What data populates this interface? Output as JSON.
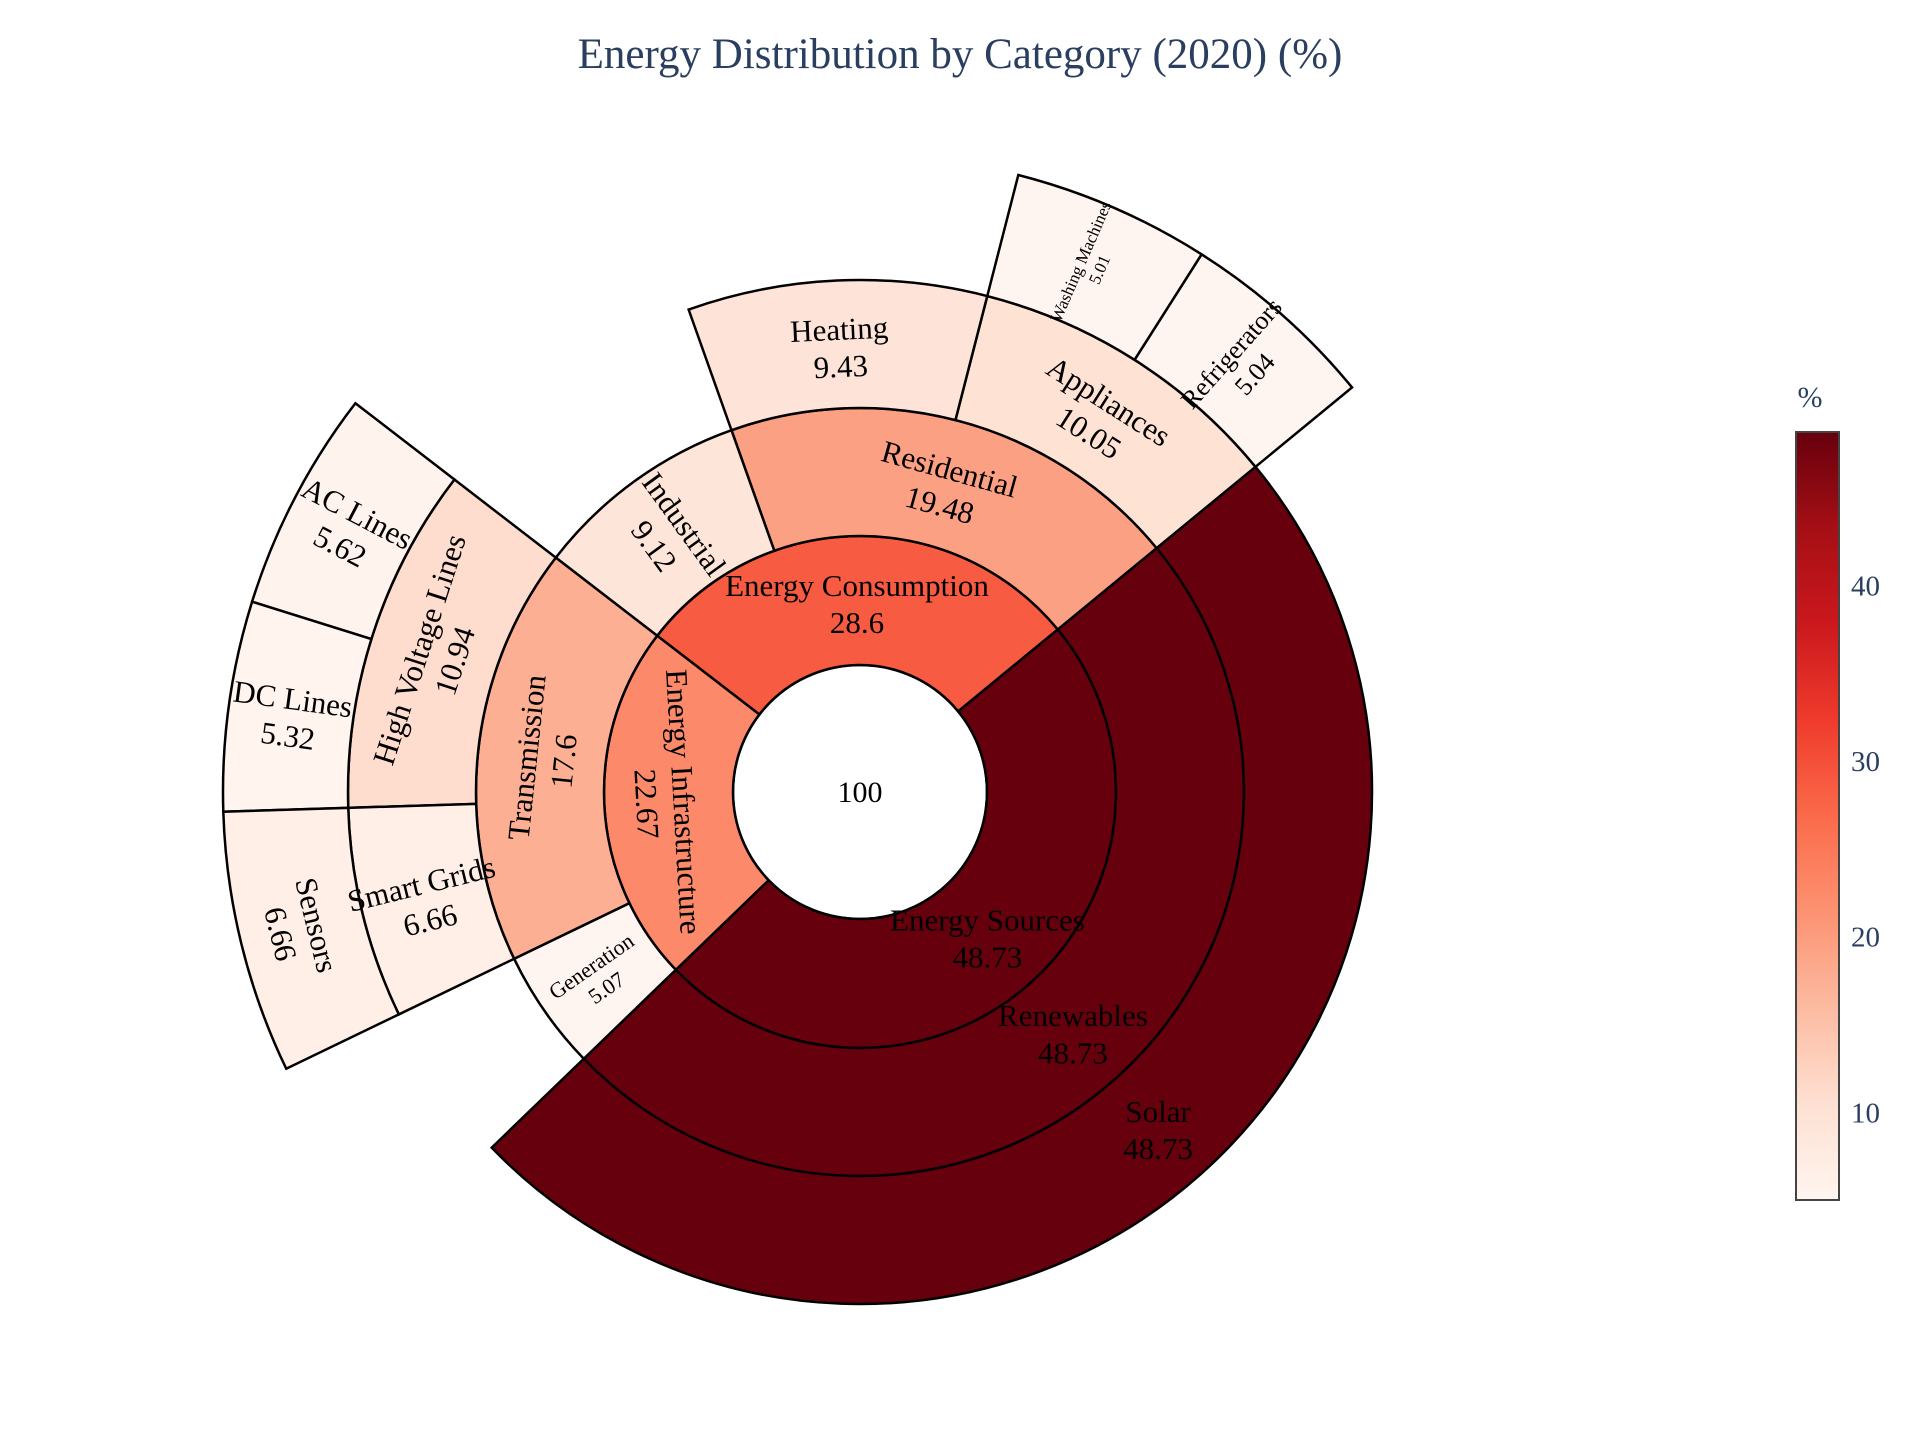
{
  "chart_data": {
    "type": "sunburst",
    "title": "Energy Distribution by Category (2020) (%)",
    "root": {
      "label": "",
      "value": 100,
      "value_text": "100"
    },
    "nodes": [
      {
        "id": "es",
        "parent": "",
        "label": "Energy Sources",
        "value": 48.73,
        "value_text": "48.73"
      },
      {
        "id": "ren",
        "parent": "es",
        "label": "Renewables",
        "value": 48.73,
        "value_text": "48.73"
      },
      {
        "id": "sol",
        "parent": "ren",
        "label": "Solar",
        "value": 48.73,
        "value_text": "48.73"
      },
      {
        "id": "ec",
        "parent": "",
        "label": "Energy Consumption",
        "value": 28.6,
        "value_text": "28.6"
      },
      {
        "id": "res",
        "parent": "ec",
        "label": "Residential",
        "value": 19.48,
        "value_text": "19.48"
      },
      {
        "id": "app",
        "parent": "res",
        "label": "Appliances",
        "value": 10.05,
        "value_text": "10.05"
      },
      {
        "id": "ref",
        "parent": "app",
        "label": "Refrigerators",
        "value": 5.04,
        "value_text": "5.04"
      },
      {
        "id": "wm",
        "parent": "app",
        "label": "Washing Machines",
        "value": 5.01,
        "value_text": "5.01"
      },
      {
        "id": "heat",
        "parent": "res",
        "label": "Heating",
        "value": 9.43,
        "value_text": "9.43"
      },
      {
        "id": "ind",
        "parent": "ec",
        "label": "Industrial",
        "value": 9.12,
        "value_text": "9.12"
      },
      {
        "id": "ei",
        "parent": "",
        "label": "Energy Infrastructure",
        "value": 22.67,
        "value_text": "22.67"
      },
      {
        "id": "tr",
        "parent": "ei",
        "label": "Transmission",
        "value": 17.6,
        "value_text": "17.6"
      },
      {
        "id": "hvl",
        "parent": "tr",
        "label": "High Voltage Lines",
        "value": 10.94,
        "value_text": "10.94"
      },
      {
        "id": "acl",
        "parent": "hvl",
        "label": "AC Lines",
        "value": 5.62,
        "value_text": "5.62"
      },
      {
        "id": "dcl",
        "parent": "hvl",
        "label": "DC Lines",
        "value": 5.32,
        "value_text": "5.32"
      },
      {
        "id": "sg",
        "parent": "tr",
        "label": "Smart Grids",
        "value": 6.66,
        "value_text": "6.66"
      },
      {
        "id": "sen",
        "parent": "sg",
        "label": "Sensors",
        "value": 6.66,
        "value_text": "6.66"
      },
      {
        "id": "gen",
        "parent": "ei",
        "label": "Generation",
        "value": 5.07,
        "value_text": "5.07"
      }
    ],
    "colorscale": {
      "name": "Reds",
      "colors": [
        "#fff5f0",
        "#fee0d2",
        "#fcbba1",
        "#fc9272",
        "#fb6a4a",
        "#ef3b2c",
        "#cb181d",
        "#a50f15",
        "#67000d"
      ],
      "cmin": 5.01,
      "cmax": 48.73
    },
    "colorbar": {
      "title": "%",
      "ticks": [
        10,
        20,
        30,
        40
      ]
    }
  }
}
